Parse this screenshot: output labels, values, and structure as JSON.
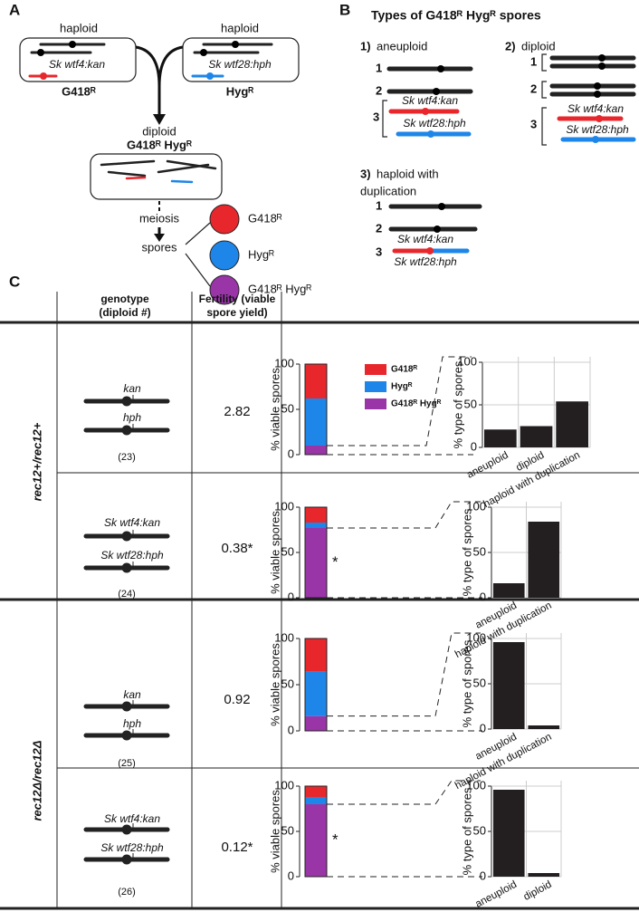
{
  "panel_a": {
    "label": "A",
    "left_cell": {
      "title": "haploid",
      "gene": "Sk wtf4:kan",
      "marker": "G418ᴿ"
    },
    "right_cell": {
      "title": "haploid",
      "gene": "Sk wtf28:hph",
      "marker": "Hygᴿ"
    },
    "diploid": {
      "title": "diploid",
      "marker": "G418ᴿ Hygᴿ"
    },
    "meiosis": "meiosis",
    "spores": "spores",
    "spore_types": [
      {
        "label": "G418ᴿ",
        "color": "#e8272d"
      },
      {
        "label": "Hygᴿ",
        "color": "#1e86e8"
      },
      {
        "label": "G418ᴿ Hygᴿ",
        "color": "#9a35a8"
      }
    ]
  },
  "panel_b": {
    "label": "B",
    "title": "Types of G418ᴿ Hygᴿ spores",
    "types": [
      {
        "number": "1)",
        "name": [
          "aneuploid"
        ],
        "chromosomes": [
          "1",
          "2",
          "3"
        ],
        "genes": [
          "Sk wtf4:kan",
          "Sk wtf28:hph"
        ]
      },
      {
        "number": "2)",
        "name": [
          "diploid"
        ],
        "chromosomes": [
          "1",
          "2",
          "3"
        ],
        "genes": [
          "Sk wtf4:kan",
          "Sk wtf28:hph"
        ]
      },
      {
        "number": "3)",
        "name": [
          "haploid with",
          "duplication"
        ],
        "chromosomes": [
          "1",
          "2",
          "3"
        ],
        "genes": [
          "Sk wtf4:kan",
          "Sk wtf28:hph"
        ]
      }
    ]
  },
  "panel_c": {
    "label": "C",
    "headers": {
      "genotype": [
        "genotype",
        "(diploid #)"
      ],
      "fertility": [
        "Fertility (viable",
        "spore yield)"
      ]
    },
    "groups": [
      "rec12+/rec12+",
      "rec12Δ/rec12Δ"
    ],
    "rows": [
      {
        "genes": [
          "kan",
          "hph"
        ],
        "diploid_number": "(23)",
        "fertility": "2.82"
      },
      {
        "genes": [
          "Sk wtf4:kan",
          "Sk wtf28:hph"
        ],
        "diploid_number": "(24)",
        "fertility": "0.38*"
      },
      {
        "genes": [
          "kan",
          "hph"
        ],
        "diploid_number": "(25)",
        "fertility": "0.92"
      },
      {
        "genes": [
          "Sk wtf4:kan",
          "Sk wtf28:hph"
        ],
        "diploid_number": "(26)",
        "fertility": "0.12*"
      }
    ]
  },
  "chart_data": [
    {
      "type": "stacked_bar",
      "ylabel": "% viable spores",
      "legend": true,
      "ylim": [
        0,
        100
      ],
      "yticks": [
        0,
        50,
        100
      ],
      "series": [
        {
          "name": "G418ᴿ",
          "color": "#e8272d",
          "values": [
            38
          ]
        },
        {
          "name": "Hygᴿ",
          "color": "#1e86e8",
          "values": [
            52
          ]
        },
        {
          "name": "G418ᴿ Hygᴿ",
          "color": "#9a35a8",
          "values": [
            10
          ]
        }
      ]
    },
    {
      "type": "bar",
      "ylabel": "% type of spores",
      "categories": [
        "aneuploid",
        "diploid",
        "haploid with duplication"
      ],
      "values": [
        21,
        25,
        54
      ],
      "color": "#231f20",
      "ylim": [
        0,
        100
      ],
      "yticks": [
        0,
        50,
        100
      ],
      "grid": true
    },
    {
      "type": "stacked_bar",
      "ylabel": "% viable spores",
      "legend": false,
      "annotation": "*",
      "ylim": [
        0,
        100
      ],
      "yticks": [
        0,
        50,
        100
      ],
      "series": [
        {
          "color": "#e8272d",
          "values": [
            17
          ]
        },
        {
          "color": "#1e86e8",
          "values": [
            6
          ]
        },
        {
          "color": "#9a35a8",
          "values": [
            77
          ]
        }
      ]
    },
    {
      "type": "bar",
      "ylabel": "% type of spores",
      "categories": [
        "aneuploid",
        "haploid with duplication"
      ],
      "values": [
        16,
        84
      ],
      "color": "#231f20",
      "ylim": [
        0,
        100
      ],
      "yticks": [
        0,
        50,
        100
      ],
      "grid": true
    },
    {
      "type": "stacked_bar",
      "ylabel": "% viable spores",
      "legend": false,
      "ylim": [
        0,
        100
      ],
      "yticks": [
        0,
        50,
        100
      ],
      "series": [
        {
          "color": "#e8272d",
          "values": [
            36
          ]
        },
        {
          "color": "#1e86e8",
          "values": [
            48
          ]
        },
        {
          "color": "#9a35a8",
          "values": [
            16
          ]
        }
      ]
    },
    {
      "type": "bar",
      "ylabel": "% type of spores",
      "categories": [
        "aneuploid",
        "haploid with duplication"
      ],
      "values": [
        96,
        4
      ],
      "color": "#231f20",
      "ylim": [
        0,
        100
      ],
      "yticks": [
        0,
        50,
        100
      ],
      "grid": true
    },
    {
      "type": "stacked_bar",
      "ylabel": "% viable spores",
      "legend": false,
      "annotation": "*",
      "ylim": [
        0,
        100
      ],
      "yticks": [
        0,
        50,
        100
      ],
      "series": [
        {
          "color": "#e8272d",
          "values": [
            12
          ]
        },
        {
          "color": "#1e86e8",
          "values": [
            8
          ]
        },
        {
          "color": "#9a35a8",
          "values": [
            80
          ]
        }
      ]
    },
    {
      "type": "bar",
      "ylabel": "% type of spores",
      "categories": [
        "aneuploid",
        "diploid"
      ],
      "values": [
        96,
        4
      ],
      "color": "#231f20",
      "ylim": [
        0,
        100
      ],
      "yticks": [
        0,
        50,
        100
      ],
      "grid": true
    }
  ]
}
